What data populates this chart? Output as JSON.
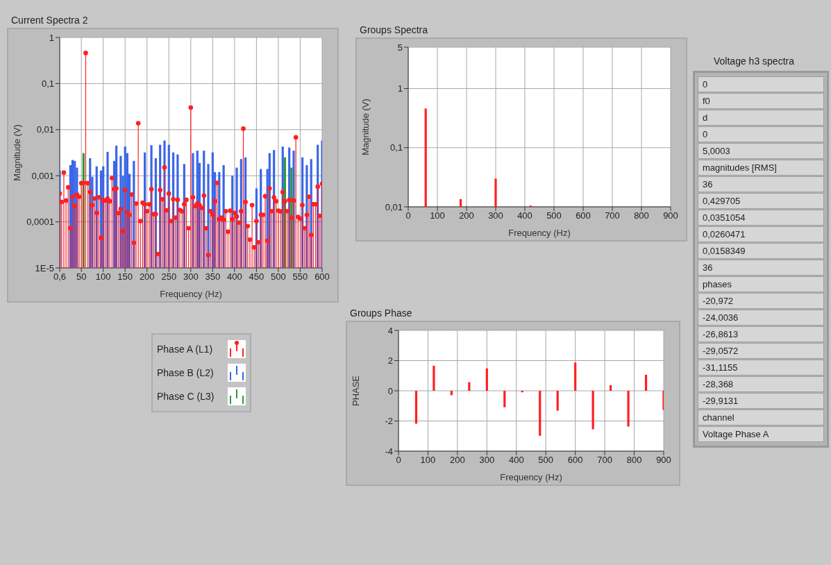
{
  "chart_data": [
    {
      "type": "lollipop",
      "title": "Current Spectra 2",
      "xlabel": "Frequency (Hz)",
      "ylabel": "Magnitude (V)",
      "log": "y",
      "grid": true,
      "legend": "bottom left",
      "marker": "circle",
      "x": [
        0.6,
        5,
        10,
        15,
        20,
        25,
        30,
        35,
        40,
        45,
        50,
        55,
        60,
        65,
        70,
        75,
        80,
        85,
        90,
        95,
        100,
        105,
        110,
        115,
        120,
        125,
        130,
        135,
        140,
        145,
        150,
        155,
        160,
        165,
        170,
        175,
        180,
        185,
        190,
        195,
        200,
        205,
        210,
        215,
        220,
        225,
        230,
        235,
        240,
        245,
        250,
        255,
        260,
        265,
        270,
        275,
        280,
        285,
        290,
        295,
        300,
        305,
        310,
        315,
        320,
        325,
        330,
        335,
        340,
        345,
        350,
        355,
        360,
        365,
        370,
        375,
        380,
        385,
        390,
        395,
        400,
        405,
        410,
        415,
        420,
        425,
        430,
        435,
        440,
        445,
        450,
        455,
        460,
        465,
        470,
        475,
        480,
        485,
        490,
        495,
        500,
        505,
        510,
        515,
        520,
        525,
        530,
        535,
        540,
        545,
        550,
        555,
        560,
        565,
        570,
        575,
        580,
        585,
        590,
        595,
        600
      ],
      "xlim": [
        0.6,
        600
      ],
      "xticks": [
        {
          "value": 0.6,
          "label": "0,6"
        },
        50,
        100,
        150,
        200,
        250,
        300,
        350,
        400,
        450,
        500,
        550,
        600
      ],
      "ylim": [
        1e-05,
        1
      ],
      "yticks": [
        {
          "value": 1e-05,
          "label": "1E-5"
        },
        {
          "value": 0.0001,
          "label": "0,0001"
        },
        {
          "value": 0.001,
          "label": "0,001"
        },
        {
          "value": 0.01,
          "label": "0,01"
        },
        {
          "value": 0.1,
          "label": "0,1"
        },
        1
      ],
      "series": [
        {
          "name": "Phase B (L2)",
          "type": "bar",
          "color": "#3a66e8",
          "values": [
            0.0013,
            null,
            null,
            null,
            null,
            0.0017,
            0.0022,
            0.0021,
            0.0015,
            null,
            null,
            null,
            null,
            null,
            0.0024,
            0.00095,
            null,
            0.0016,
            null,
            0.0013,
            0.0016,
            null,
            0.0033,
            null,
            null,
            0.0021,
            0.0045,
            null,
            0.0027,
            0.001,
            0.0043,
            0.0031,
            0.0011,
            null,
            0.0021,
            null,
            null,
            null,
            null,
            0.0032,
            null,
            null,
            0.0046,
            null,
            0.0024,
            null,
            0.0047,
            null,
            0.0058,
            null,
            0.0047,
            null,
            0.0032,
            null,
            0.0029,
            null,
            null,
            0.0018,
            null,
            null,
            null,
            0.0031,
            null,
            0.0035,
            0.0019,
            null,
            0.0035,
            null,
            0.0018,
            null,
            0.0032,
            0.0012,
            null,
            0.0012,
            null,
            0.0017,
            null,
            null,
            null,
            0.001,
            null,
            0.0015,
            null,
            0.0023,
            null,
            0.0025,
            null,
            null,
            null,
            null,
            0.00053,
            null,
            0.0014,
            null,
            null,
            0.0014,
            0.0031,
            null,
            0.0036,
            null,
            null,
            null,
            0.0043,
            null,
            null,
            0.0041,
            null,
            0.0035,
            null,
            null,
            null,
            0.0025,
            null,
            0.0017,
            null,
            0.0023,
            null,
            null,
            0.0047,
            null,
            0.0058
          ]
        },
        {
          "name": "Phase C (L3)",
          "type": "bar",
          "color": "#2e9a3a",
          "values": [
            null,
            null,
            null,
            null,
            null,
            null,
            null,
            null,
            null,
            null,
            null,
            0.0031,
            null,
            null,
            null,
            null,
            null,
            null,
            null,
            null,
            null,
            null,
            null,
            null,
            null,
            null,
            null,
            null,
            null,
            null,
            null,
            null,
            null,
            null,
            null,
            null,
            null,
            null,
            null,
            null,
            null,
            null,
            null,
            null,
            null,
            null,
            null,
            null,
            null,
            null,
            null,
            null,
            null,
            null,
            null,
            null,
            null,
            null,
            null,
            null,
            null,
            null,
            null,
            null,
            null,
            null,
            null,
            null,
            null,
            null,
            null,
            null,
            null,
            null,
            null,
            null,
            null,
            null,
            null,
            null,
            null,
            null,
            null,
            null,
            null,
            null,
            null,
            null,
            null,
            null,
            null,
            null,
            null,
            null,
            null,
            null,
            null,
            null,
            null,
            null,
            null,
            null,
            null,
            0.0025,
            null,
            null,
            0.0015,
            null,
            null,
            null,
            null,
            null,
            null,
            null,
            null,
            null,
            null,
            null,
            null,
            null,
            null
          ]
        },
        {
          "name": "Phase A (L1)",
          "type": "lollipop",
          "color": "#ff2020",
          "values": [
            0.00041,
            0.00027,
            0.00117,
            0.00029,
            0.00056,
            7.3e-05,
            0.00035,
            0.00022,
            0.00039,
            0.00035,
            0.00069,
            0.0007,
            0.46,
            0.00069,
            0.00044,
            0.00023,
            0.00032,
            0.000156,
            0.00034,
            4.5e-05,
            0.00029,
            0.00029,
            0.00032,
            0.00028,
            0.00089,
            0.00051,
            0.00053,
            0.000155,
            0.00019,
            6.3e-05,
            0.00049,
            0.000162,
            0.000142,
            0.00039,
            3.5e-05,
            0.00025,
            0.0138,
            0.000104,
            0.00026,
            0.00024,
            0.00017,
            0.00024,
            0.00051,
            0.000147,
            0.000147,
            2e-05,
            0.00049,
            0.00031,
            0.00152,
            0.000178,
            0.00041,
            0.000104,
            0.00031,
            0.000123,
            0.0003,
            0.00018,
            0.000169,
            0.00024,
            0.0003,
            7.3e-05,
            0.03,
            0.00034,
            0.00022,
            0.00025,
            0.00023,
            0.0002,
            0.00037,
            7.3e-05,
            1.9e-05,
            0.00017,
            0.000142,
            0.00028,
            0.0007,
            0.000114,
            0.000123,
            0.00011,
            0.00017,
            6.1e-05,
            0.000175,
            0.000114,
            0.000156,
            0.00013,
            9.6e-05,
            0.00017,
            0.0105,
            0.00027,
            8.1e-05,
            4.1e-05,
            0.00023,
            2.8e-05,
            0.000104,
            3.6e-05,
            0.000142,
            0.000142,
            0.00036,
            3.9e-05,
            0.00053,
            0.00017,
            0.00034,
            0.00028,
            0.000175,
            0.000169,
            0.00044,
            0.00028,
            0.00017,
            0.0003,
            0.000123,
            0.00029,
            0.0068,
            0.000128,
            0.000117,
            0.00023,
            7.3e-05,
            0.000142,
            0.00035,
            5.2e-05,
            0.00024,
            0.00024,
            0.00058,
            0.000135,
            0.00067
          ]
        }
      ]
    },
    {
      "type": "bar",
      "title": "Groups Spectra",
      "xlabel": "Frequency (Hz)",
      "ylabel": "Magnitude (V)",
      "log": "y",
      "grid": true,
      "x": [
        60,
        180,
        300,
        420
      ],
      "values": [
        0.46,
        0.0135,
        0.03,
        0.0105
      ],
      "color": "#ff2020",
      "xlim": [
        0,
        900
      ],
      "xticks": [
        0,
        100,
        200,
        300,
        400,
        500,
        600,
        700,
        800,
        900
      ],
      "ylim": [
        0.01,
        5
      ],
      "yticks": [
        {
          "value": 0.01,
          "label": "0,01"
        },
        {
          "value": 0.1,
          "label": "0,1"
        },
        1,
        5
      ]
    },
    {
      "type": "bar",
      "title": "Groups Phase",
      "xlabel": "Frequency (Hz)",
      "ylabel": "PHASE",
      "grid": true,
      "x": [
        60,
        120,
        180,
        240,
        300,
        360,
        420,
        480,
        540,
        600,
        660,
        720,
        780,
        840,
        900
      ],
      "values": [
        -2.18,
        1.66,
        -0.29,
        0.57,
        1.48,
        -1.09,
        -0.1,
        -2.98,
        -1.32,
        1.87,
        -2.55,
        0.37,
        -2.37,
        1.06,
        -1.27
      ],
      "color": "#ff2020",
      "xlim": [
        0,
        900
      ],
      "xticks": [
        0,
        100,
        200,
        300,
        400,
        500,
        600,
        700,
        800,
        900
      ],
      "ylim": [
        -4,
        4
      ],
      "yticks": [
        -4,
        -2,
        0,
        2,
        4
      ]
    },
    {
      "type": "other",
      "title": "Voltage h3 spectra",
      "annotations": [
        "0",
        "f0",
        "d",
        "0",
        "5,0003",
        "magnitudes [RMS]",
        "36",
        "0,429705",
        "0,0351054",
        "0,0260471",
        "0,0158349",
        "36",
        "phases",
        "-20,972",
        "-24,0036",
        "-26,8613",
        "-29,0572",
        "-31,1155",
        "-28,368",
        "-29,9131",
        "channel",
        "Voltage Phase A"
      ]
    }
  ]
}
